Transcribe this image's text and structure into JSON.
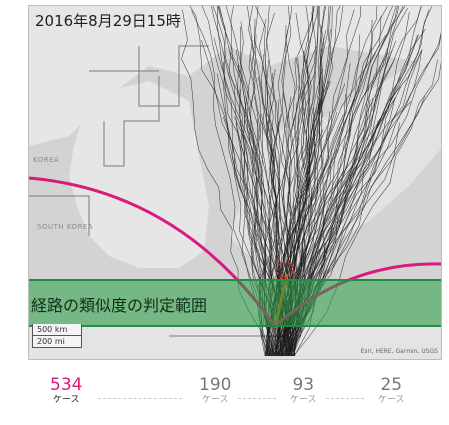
{
  "map": {
    "date_label": "2016年8月29日15時",
    "places": [
      "KOREA",
      "SOUTH KOREA"
    ],
    "scale": [
      "500 km",
      "200 mi"
    ],
    "attribution": "Esri, HERE, Garmin, USGS"
  },
  "band": {
    "label": "経路の類似度の判定範囲"
  },
  "counts": [
    {
      "number": "534",
      "unit": "ケース",
      "active": true
    },
    {
      "number": "190",
      "unit": "ケース",
      "active": false
    },
    {
      "number": "93",
      "unit": "ケース",
      "active": false
    },
    {
      "number": "25",
      "unit": "ケース",
      "active": false
    }
  ],
  "colors": {
    "curve": "#d81b7d",
    "band": "#28a046",
    "active_count": "#d81b7d"
  }
}
